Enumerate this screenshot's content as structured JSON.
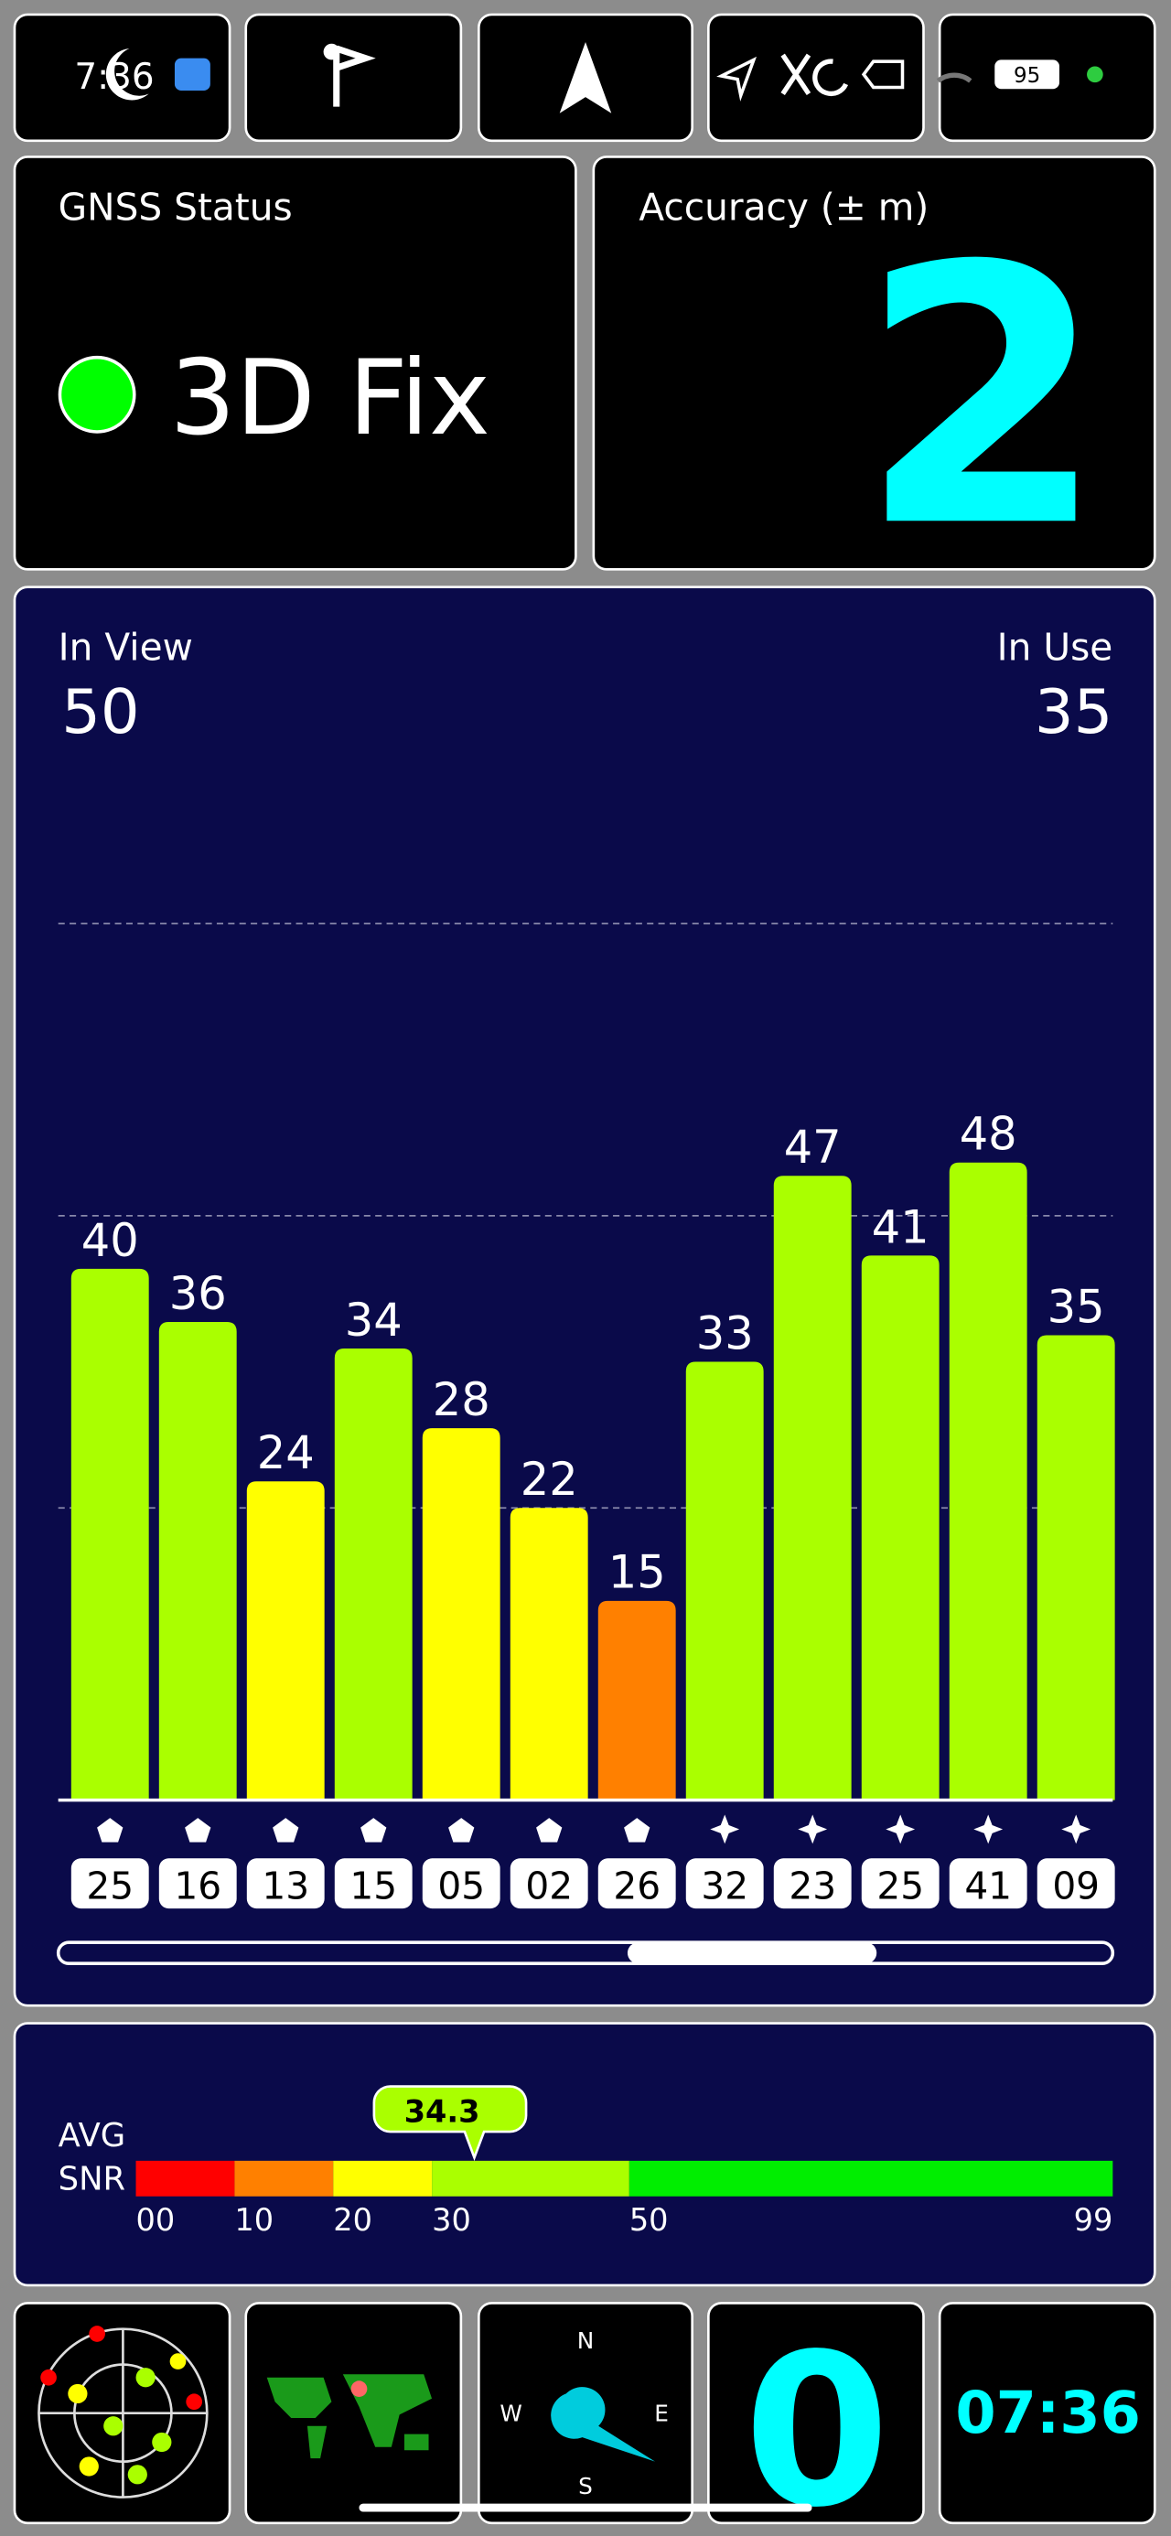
{
  "status_bar": {
    "time": "7:36",
    "battery": "95"
  },
  "gnss_status": {
    "title": "GNSS Status",
    "value": "3D Fix"
  },
  "accuracy": {
    "title": "Accuracy (± m)",
    "value": 2
  },
  "signal_chart": {
    "type": "bar",
    "in_view_label": "In View",
    "in_view": 50,
    "in_use_label": "In Use",
    "in_use": 35,
    "categories": [
      "25",
      "16",
      "13",
      "15",
      "05",
      "02",
      "26",
      "32",
      "23",
      "25",
      "41",
      "09"
    ],
    "values": [
      40,
      36,
      24,
      34,
      28,
      22,
      15,
      33,
      47,
      41,
      48,
      35
    ],
    "colors": [
      "#aaff00",
      "#aaff00",
      "#ffff00",
      "#aaff00",
      "#ffff00",
      "#ffff00",
      "#ff8000",
      "#aaff00",
      "#aaff00",
      "#aaff00",
      "#aaff00",
      "#aaff00"
    ],
    "constellations": [
      "pentagon",
      "pentagon",
      "pentagon",
      "pentagon",
      "pentagon",
      "pentagon",
      "pentagon",
      "star",
      "star",
      "star",
      "star",
      "star"
    ],
    "ylim": [
      0,
      66
    ],
    "gridlines": [
      22,
      44,
      66
    ]
  },
  "snr": {
    "label_1": "AVG",
    "label_2": "SNR",
    "average": 34.3,
    "xlim": [
      0,
      99
    ],
    "ticks": [
      {
        "value": 0,
        "label": "00"
      },
      10,
      20,
      30,
      50,
      99
    ],
    "segment_colors": [
      "#ff0000",
      "#ff8000",
      "#ffff00",
      "#aaff00",
      "#00ee00"
    ]
  },
  "tiles": {
    "compass": {
      "n": "N",
      "e": "E",
      "s": "S",
      "w": "W"
    },
    "speed": 0,
    "clock": "07:36"
  }
}
